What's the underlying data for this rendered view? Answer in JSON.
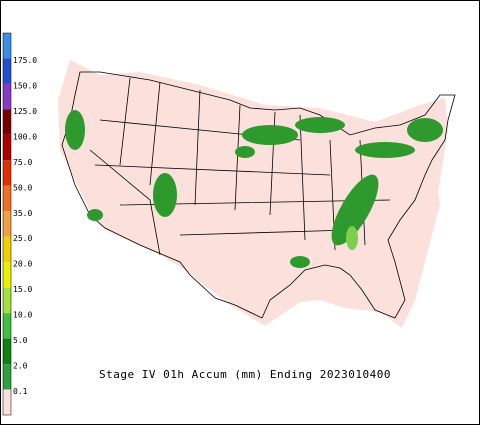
{
  "caption": "Stage IV 01h Accum (mm) Ending 2023010400",
  "legend": {
    "labels": [
      "175.0",
      "150.0",
      "125.0",
      "100.0",
      "75.0",
      "50.0",
      "35.0",
      "25.0",
      "20.0",
      "15.0",
      "10.0",
      "5.0",
      "2.0",
      "0.1"
    ],
    "colors": [
      "#3a8ee6",
      "#2050d0",
      "#8a3ac8",
      "#7a0000",
      "#b00000",
      "#e03000",
      "#f07020",
      "#f0a040",
      "#f0d000",
      "#e8f000",
      "#a0e040",
      "#40c040",
      "#108010",
      "#30a040",
      "#fbe0dc"
    ]
  }
}
